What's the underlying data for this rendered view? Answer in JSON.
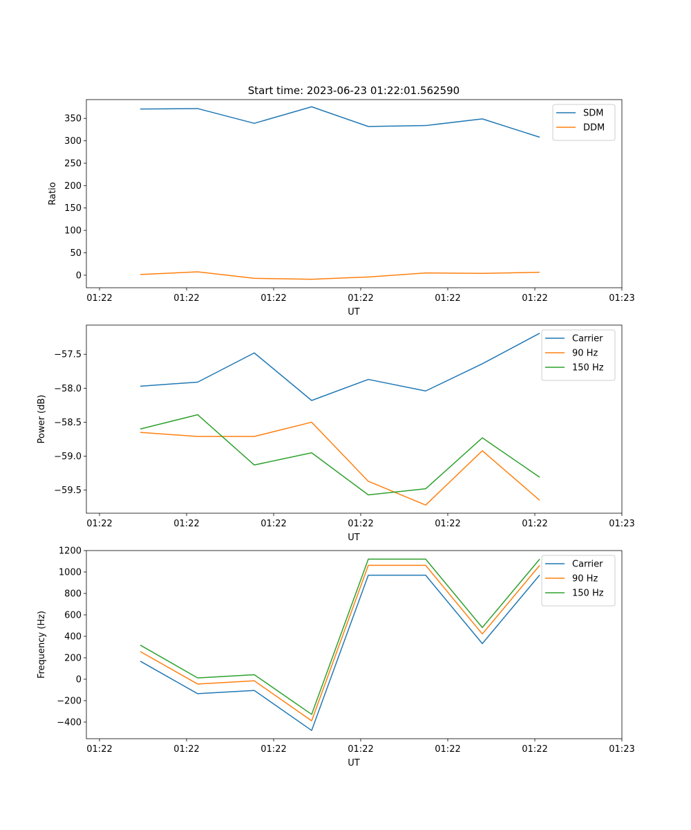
{
  "figure": {
    "title": "Start time: 2023-06-23 01:22:01.562590"
  },
  "colors": {
    "c0": "#1f77b4",
    "c1": "#ff7f0e",
    "c2": "#2ca02c"
  },
  "chart_data": [
    {
      "type": "line",
      "title": "Start time: 2023-06-23 01:22:01.562590",
      "xlabel": "UT",
      "ylabel": "Ratio",
      "x_tick_labels": [
        "01:22",
        "01:22",
        "01:22",
        "01:22",
        "01:22",
        "01:22",
        "01:23"
      ],
      "y_ticks": [
        0,
        50,
        100,
        150,
        200,
        250,
        300,
        350
      ],
      "y_tick_labels": [
        "0",
        "50",
        "100",
        "150",
        "200",
        "250",
        "300",
        "350"
      ],
      "ylim": [
        -28,
        392
      ],
      "legend_position": "upper right",
      "grid": false,
      "series": [
        {
          "name": "SDM",
          "color": "#1f77b4",
          "values": [
            371,
            372,
            339,
            376,
            332,
            334,
            349,
            308
          ]
        },
        {
          "name": "DDM",
          "color": "#ff7f0e",
          "values": [
            1.5,
            7.5,
            -7,
            -9,
            -4,
            5,
            4,
            6.5
          ]
        }
      ]
    },
    {
      "type": "line",
      "title": "",
      "xlabel": "UT",
      "ylabel": "Power (dB)",
      "x_tick_labels": [
        "01:22",
        "01:22",
        "01:22",
        "01:22",
        "01:22",
        "01:22",
        "01:23"
      ],
      "y_ticks": [
        -59.5,
        -59.0,
        -58.5,
        -58.0,
        -57.5
      ],
      "y_tick_labels": [
        "−59.5",
        "−59.0",
        "−58.5",
        "−58.0",
        "−57.5"
      ],
      "ylim": [
        -59.84,
        -57.07
      ],
      "legend_position": "upper right",
      "grid": false,
      "series": [
        {
          "name": "Carrier",
          "color": "#1f77b4",
          "values": [
            -57.97,
            -57.91,
            -57.48,
            -58.18,
            -57.87,
            -58.04,
            -57.64,
            -57.19
          ]
        },
        {
          "name": "90 Hz",
          "color": "#ff7f0e",
          "values": [
            -58.65,
            -58.71,
            -58.71,
            -58.5,
            -59.37,
            -59.72,
            -58.92,
            -59.65
          ]
        },
        {
          "name": "150 Hz",
          "color": "#2ca02c",
          "values": [
            -58.6,
            -58.39,
            -59.13,
            -58.95,
            -59.57,
            -59.48,
            -58.73,
            -59.31
          ]
        }
      ]
    },
    {
      "type": "line",
      "title": "",
      "xlabel": "UT",
      "ylabel": "Frequency (Hz)",
      "x_tick_labels": [
        "01:22",
        "01:22",
        "01:22",
        "01:22",
        "01:22",
        "01:22",
        "01:23"
      ],
      "y_ticks": [
        -400,
        -200,
        0,
        200,
        400,
        600,
        800,
        1000,
        1200
      ],
      "y_tick_labels": [
        "−400",
        "−200",
        "0",
        "200",
        "400",
        "600",
        "800",
        "1000",
        "1200"
      ],
      "ylim": [
        -555,
        1200
      ],
      "legend_position": "upper right",
      "grid": false,
      "series": [
        {
          "name": "Carrier",
          "color": "#1f77b4",
          "values": [
            168,
            -135,
            -105,
            -478,
            970,
            970,
            332,
            972
          ]
        },
        {
          "name": "90 Hz",
          "color": "#ff7f0e",
          "values": [
            258,
            -45,
            -15,
            -388,
            1062,
            1062,
            422,
            1062
          ]
        },
        {
          "name": "150 Hz",
          "color": "#2ca02c",
          "values": [
            318,
            12,
            42,
            -328,
            1120,
            1120,
            482,
            1120
          ]
        }
      ]
    }
  ]
}
